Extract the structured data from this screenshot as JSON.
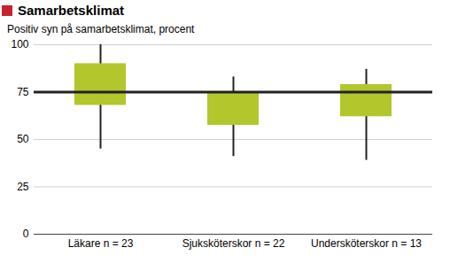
{
  "chart_data": {
    "type": "box",
    "title": "Samarbetsklimat",
    "subtitle": "Positiv syn på samarbetsklimat, procent",
    "categories": [
      "Läkare n = 23",
      "Sjuksköterskor n = 22",
      "Undersköterskor n = 13"
    ],
    "whisker_low": [
      45,
      41,
      39
    ],
    "box_low": [
      68,
      57.5,
      62
    ],
    "box_high": [
      90,
      75,
      79
    ],
    "whisker_high": [
      100,
      83,
      87
    ],
    "reference_line": 75,
    "color": "#b3c62c",
    "ylim": [
      0,
      100
    ],
    "yticks": [
      0,
      25,
      50,
      75,
      100
    ],
    "grid": true
  }
}
